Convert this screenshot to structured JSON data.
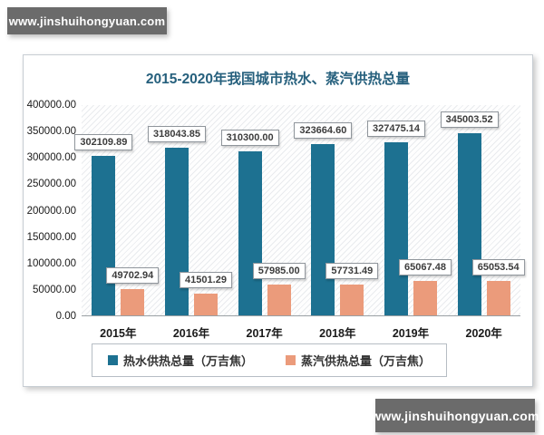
{
  "watermark_top": "www.jinshuihongyuan.com",
  "watermark_bottom": "www.jinshuihongyuan.com",
  "colors": {
    "hot_water_bar": "#1d7191",
    "steam_bar": "#eb9b7b",
    "title_text": "#26607d",
    "watermark_bg": "#6b6b6b"
  },
  "chart_data": {
    "type": "bar",
    "title": "2015-2020年我国城市热水、蒸汽供热总量",
    "categories": [
      "2015年",
      "2016年",
      "2017年",
      "2018年",
      "2019年",
      "2020年"
    ],
    "series": [
      {
        "name": "热水供热总量（万吉焦）",
        "color": "#1d7191",
        "values": [
          302109.89,
          318043.85,
          310300.0,
          323664.6,
          327475.14,
          345003.52
        ],
        "labels": [
          "302109.89",
          "318043.85",
          "310300.00",
          "323664.60",
          "327475.14",
          "345003.52"
        ]
      },
      {
        "name": "蒸汽供热总量（万吉焦）",
        "color": "#eb9b7b",
        "values": [
          49702.94,
          41501.29,
          57985.0,
          57731.49,
          65067.48,
          65053.54
        ],
        "labels": [
          "49702.94",
          "41501.29",
          "57985.00",
          "57731.49",
          "65067.48",
          "65053.54"
        ]
      }
    ],
    "xlabel": "",
    "ylabel": "",
    "ylim": [
      0,
      400000
    ],
    "ytick_step": 50000,
    "ytick_labels": [
      "400000.00",
      "350000.00",
      "300000.00",
      "250000.00",
      "200000.00",
      "150000.00",
      "100000.00",
      "50000.00",
      "0.00"
    ],
    "grid": false,
    "legend_position": "bottom",
    "plot_background": "diagonal-hatch"
  }
}
